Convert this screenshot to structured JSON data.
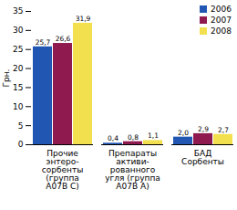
{
  "chart_data": {
    "type": "bar",
    "y_label": "Грн.",
    "categories": [
      "Прочие\nэнтеро-\nсорбенты\n(группа\nA07B C)",
      "Препараты\nактиви-\nрованного\nугля (группа\nA07B A)",
      "БАД\nСорбенты"
    ],
    "series": [
      {
        "name": "2006",
        "color": "#2157b3",
        "values": [
          25.7,
          0.4,
          2.0
        ],
        "value_labels": [
          "25,7",
          "0,4",
          "2,0"
        ]
      },
      {
        "name": "2007",
        "color": "#8e1a4f",
        "values": [
          26.6,
          0.8,
          2.9
        ],
        "value_labels": [
          "26,6",
          "0,8",
          "2,9"
        ]
      },
      {
        "name": "2008",
        "color": "#f3e04f",
        "values": [
          31.9,
          1.1,
          2.7
        ],
        "value_labels": [
          "31,9",
          "1,1",
          "2,7"
        ]
      }
    ],
    "ylim": [
      0,
      35
    ],
    "yticks": [
      0,
      5,
      10,
      15,
      20,
      25,
      30,
      35
    ],
    "grid": false,
    "legend": "upper right",
    "data_labels": true
  }
}
